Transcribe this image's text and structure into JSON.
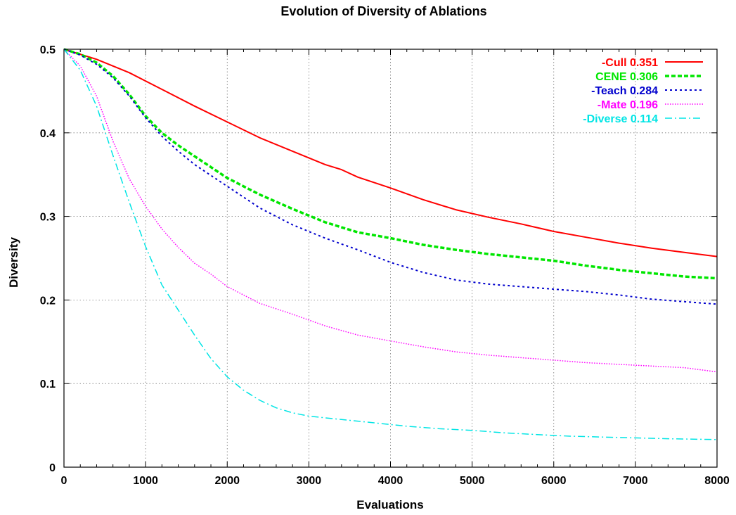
{
  "chart_data": {
    "type": "line",
    "title": "Evolution of Diversity of Ablations",
    "xlabel": "Evaluations",
    "ylabel": "Diversity",
    "xlim": [
      0,
      8000
    ],
    "ylim": [
      0,
      0.5
    ],
    "xticks": [
      0,
      1000,
      2000,
      3000,
      4000,
      5000,
      6000,
      7000,
      8000
    ],
    "yticks": [
      0,
      0.1,
      0.2,
      0.3,
      0.4,
      0.5
    ],
    "xtick_labels": [
      "0",
      "1000",
      "2000",
      "3000",
      "4000",
      "5000",
      "6000",
      "7000",
      "8000"
    ],
    "ytick_labels": [
      "0",
      "0.1",
      "0.2",
      "0.3",
      "0.4",
      "0.5"
    ],
    "grid": true,
    "legend_position": "top-right",
    "series": [
      {
        "name": "-Cull 0.351",
        "color": "#ff0000",
        "dash": "solid",
        "width": 2,
        "x": [
          0,
          400,
          800,
          1200,
          1600,
          2000,
          2400,
          2800,
          3200,
          3400,
          3600,
          4000,
          4400,
          4800,
          5200,
          5600,
          6000,
          6400,
          6800,
          7200,
          7600,
          8000
        ],
        "y": [
          0.5,
          0.488,
          0.472,
          0.452,
          0.432,
          0.413,
          0.394,
          0.378,
          0.362,
          0.356,
          0.347,
          0.334,
          0.32,
          0.308,
          0.299,
          0.291,
          0.282,
          0.275,
          0.268,
          0.262,
          0.257,
          0.252
        ]
      },
      {
        "name": "CENE 0.306",
        "color": "#00e600",
        "dash": "dashed",
        "width": 3.5,
        "x": [
          0,
          200,
          400,
          600,
          800,
          1000,
          1200,
          1400,
          1600,
          2000,
          2400,
          2800,
          3200,
          3600,
          4000,
          4400,
          4800,
          5200,
          5600,
          6000,
          6400,
          6800,
          7200,
          7600,
          8000
        ],
        "y": [
          0.5,
          0.494,
          0.484,
          0.468,
          0.446,
          0.42,
          0.4,
          0.385,
          0.372,
          0.346,
          0.326,
          0.309,
          0.293,
          0.281,
          0.274,
          0.266,
          0.26,
          0.255,
          0.251,
          0.247,
          0.241,
          0.236,
          0.232,
          0.228,
          0.226
        ]
      },
      {
        "name": "-Teach 0.284",
        "color": "#0000cd",
        "dash": "dotted",
        "width": 2,
        "x": [
          0,
          200,
          400,
          600,
          800,
          1000,
          1200,
          1400,
          1600,
          2000,
          2400,
          2800,
          3200,
          3600,
          4000,
          4400,
          4800,
          5200,
          5600,
          6000,
          6400,
          6800,
          7200,
          7600,
          8000
        ],
        "y": [
          0.5,
          0.493,
          0.482,
          0.466,
          0.444,
          0.418,
          0.396,
          0.378,
          0.362,
          0.336,
          0.31,
          0.29,
          0.274,
          0.26,
          0.245,
          0.233,
          0.224,
          0.219,
          0.216,
          0.213,
          0.21,
          0.206,
          0.201,
          0.198,
          0.195
        ]
      },
      {
        "name": "-Mate 0.196",
        "color": "#ff00ff",
        "dash": "finedot",
        "width": 1.5,
        "x": [
          0,
          200,
          400,
          600,
          800,
          1000,
          1200,
          1400,
          1600,
          1800,
          2000,
          2400,
          2800,
          3200,
          3600,
          4000,
          4400,
          4800,
          5200,
          5600,
          6000,
          6400,
          6800,
          7200,
          7600,
          8000
        ],
        "y": [
          0.5,
          0.48,
          0.444,
          0.39,
          0.345,
          0.312,
          0.285,
          0.263,
          0.244,
          0.231,
          0.216,
          0.196,
          0.183,
          0.169,
          0.158,
          0.151,
          0.144,
          0.138,
          0.134,
          0.131,
          0.128,
          0.125,
          0.123,
          0.121,
          0.119,
          0.114
        ]
      },
      {
        "name": "-Diverse 0.114",
        "color": "#00e5e5",
        "dash": "dashdot",
        "width": 1.5,
        "x": [
          0,
          200,
          400,
          600,
          800,
          1000,
          1200,
          1400,
          1600,
          1800,
          2000,
          2200,
          2400,
          2600,
          2800,
          3000,
          3400,
          3800,
          4200,
          4600,
          5000,
          5400,
          5800,
          6200,
          6600,
          7000,
          7400,
          8000
        ],
        "y": [
          0.5,
          0.475,
          0.432,
          0.373,
          0.317,
          0.264,
          0.218,
          0.188,
          0.158,
          0.13,
          0.108,
          0.092,
          0.08,
          0.071,
          0.065,
          0.061,
          0.057,
          0.053,
          0.049,
          0.046,
          0.044,
          0.041,
          0.039,
          0.037,
          0.036,
          0.035,
          0.034,
          0.033
        ]
      }
    ]
  }
}
